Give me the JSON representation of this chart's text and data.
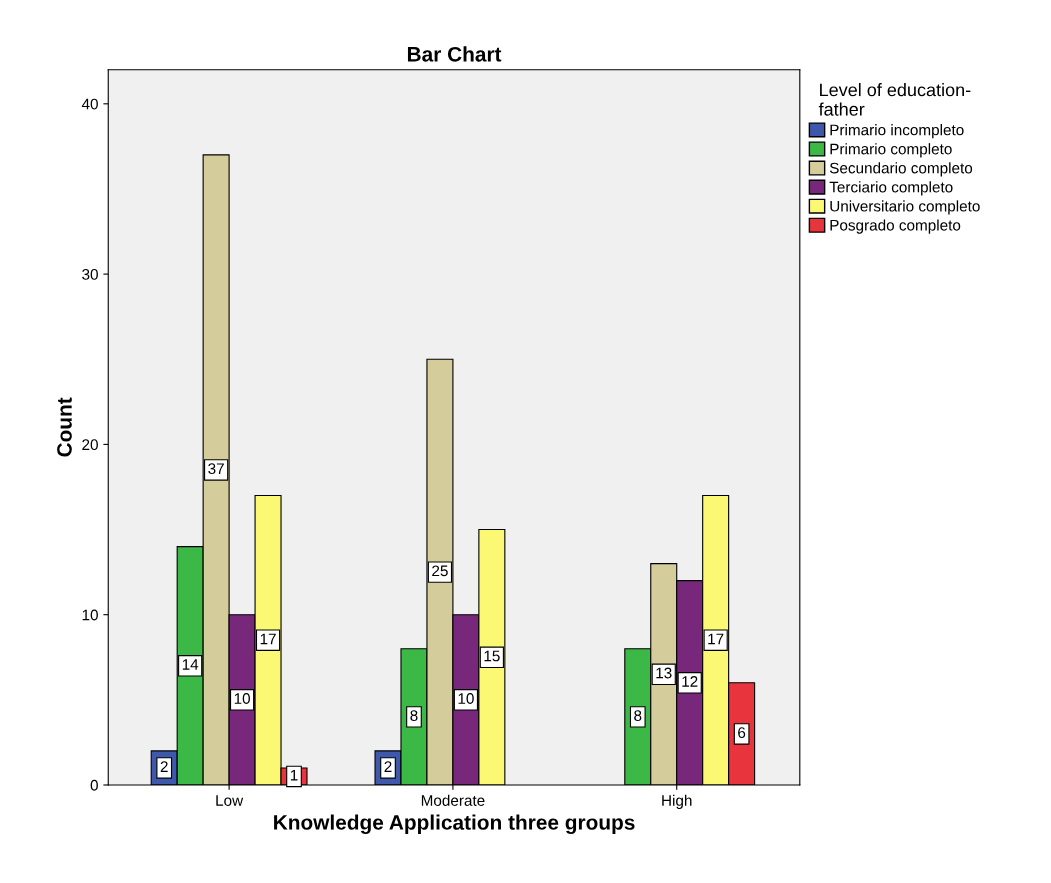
{
  "chart_data": {
    "type": "bar",
    "title": "Bar Chart",
    "xlabel": "Knowledge Application three groups",
    "ylabel": "Count",
    "legend_title": "Level of education-\nfather",
    "categories": [
      "Low",
      "Moderate",
      "High"
    ],
    "series": [
      {
        "name": "Primario incompleto",
        "color": "#3e58ac",
        "values": [
          2,
          2,
          null
        ]
      },
      {
        "name": "Primario completo",
        "color": "#3cb846",
        "values": [
          14,
          8,
          8
        ]
      },
      {
        "name": "Secundario completo",
        "color": "#d4cc9a",
        "values": [
          37,
          25,
          13
        ]
      },
      {
        "name": "Terciario completo",
        "color": "#78287a",
        "values": [
          10,
          10,
          12
        ]
      },
      {
        "name": "Universitario completo",
        "color": "#fbf873",
        "values": [
          17,
          15,
          17
        ]
      },
      {
        "name": "Posgrado completo",
        "color": "#e8343c",
        "values": [
          1,
          null,
          6
        ]
      }
    ],
    "ylim": [
      0,
      42
    ],
    "yticks": [
      0,
      10,
      20,
      30,
      40
    ],
    "grid": false,
    "legend": "top right",
    "data_labels": true
  }
}
